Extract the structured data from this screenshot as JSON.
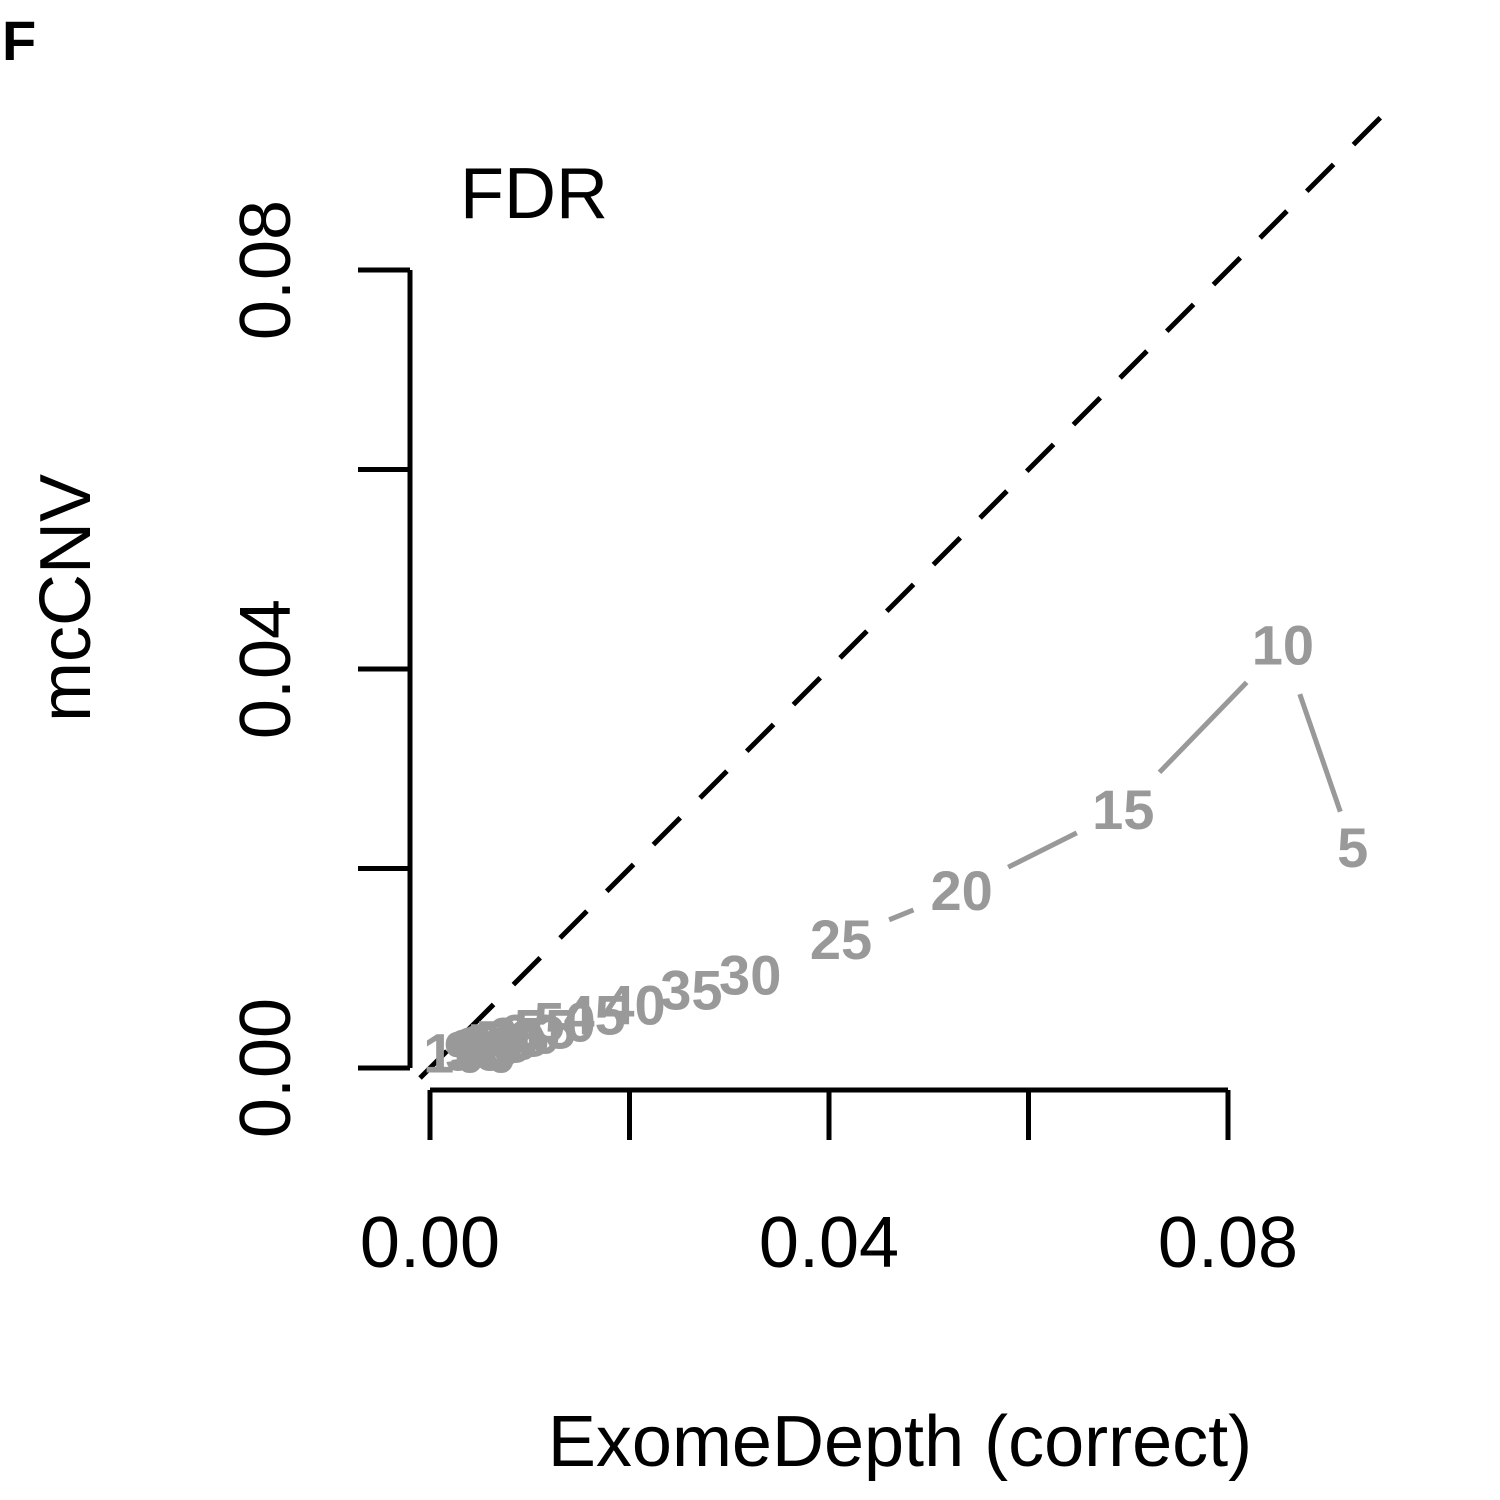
{
  "panel_label": "F",
  "chart_data": {
    "type": "line",
    "title": "FDR",
    "xlabel": "ExomeDepth (correct)",
    "ylabel": "mcCNV",
    "xlim": [
      0,
      0.08
    ],
    "ylim": [
      0,
      0.08
    ],
    "x_ticks": [
      0,
      0.02,
      0.04,
      0.06,
      0.08
    ],
    "x_tick_labels": [
      "0.00",
      "",
      "0.04",
      "",
      "0.08"
    ],
    "y_ticks": [
      0,
      0.02,
      0.04,
      0.06,
      0.08
    ],
    "y_tick_labels": [
      "0.00",
      "",
      "0.04",
      "",
      "0.08"
    ],
    "reference_line": {
      "style": "dashed",
      "slope": 1,
      "intercept": 0,
      "color": "#000000"
    },
    "series_color": "#999999",
    "points": [
      {
        "label": "5",
        "x": 0.0925,
        "y": 0.0221
      },
      {
        "label": "10",
        "x": 0.0855,
        "y": 0.0424
      },
      {
        "label": "15",
        "x": 0.0695,
        "y": 0.0259
      },
      {
        "label": "20",
        "x": 0.0533,
        "y": 0.0178
      },
      {
        "label": "25",
        "x": 0.0412,
        "y": 0.0129
      },
      {
        "label": "30",
        "x": 0.0321,
        "y": 0.0093
      },
      {
        "label": "35",
        "x": 0.0262,
        "y": 0.0078
      },
      {
        "label": "40",
        "x": 0.0205,
        "y": 0.0063
      },
      {
        "label": "45",
        "x": 0.0165,
        "y": 0.0053
      },
      {
        "label": "50",
        "x": 0.0135,
        "y": 0.0046
      },
      {
        "label": "55",
        "x": 0.0115,
        "y": 0.0039
      },
      {
        "label": "60",
        "x": 0.01,
        "y": 0.0034
      },
      {
        "label": "65",
        "x": 0.0088,
        "y": 0.0031
      },
      {
        "label": "70",
        "x": 0.0078,
        "y": 0.0028
      },
      {
        "label": "75",
        "x": 0.007,
        "y": 0.0025
      },
      {
        "label": "80",
        "x": 0.0062,
        "y": 0.0023
      },
      {
        "label": "85",
        "x": 0.0056,
        "y": 0.0021
      },
      {
        "label": "90",
        "x": 0.005,
        "y": 0.0019
      },
      {
        "label": "95",
        "x": 0.0045,
        "y": 0.0017
      },
      {
        "label": "100",
        "x": 0.004,
        "y": 0.0015
      }
    ]
  }
}
